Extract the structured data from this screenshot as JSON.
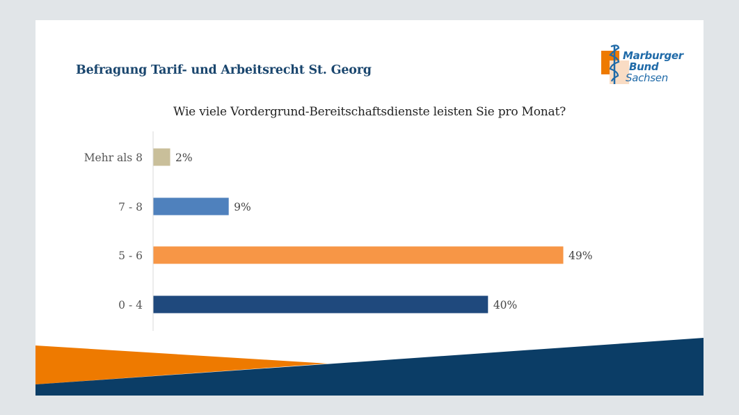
{
  "slide": {
    "header_title": "Befragung Tarif- und Arbeitsrecht St. Georg",
    "logo": {
      "lines": [
        "Marburger",
        "Bund",
        "Sachsen"
      ],
      "icon": "rod-of-asclepius-icon"
    },
    "colors": {
      "title_blue": "#1a466e",
      "decor_orange": "#ee7a00",
      "decor_navy": "#0b3d66"
    }
  },
  "chart_data": {
    "type": "bar",
    "orientation": "horizontal",
    "title": "Wie viele Vordergrund-Bereitschaftsdienste leisten Sie pro Monat?",
    "categories": [
      "Mehr als 8",
      "7 - 8",
      "5 - 6",
      "0 - 4"
    ],
    "values": [
      2,
      9,
      49,
      40
    ],
    "data_labels": [
      "2%",
      "9%",
      "49%",
      "40%"
    ],
    "unit": "%",
    "colors": [
      "#c9bf9a",
      "#4f81bd",
      "#f79646",
      "#1f497d"
    ],
    "xlabel": "",
    "ylabel": "",
    "xlim": [
      0,
      50
    ],
    "grid": false,
    "legend": "none"
  }
}
